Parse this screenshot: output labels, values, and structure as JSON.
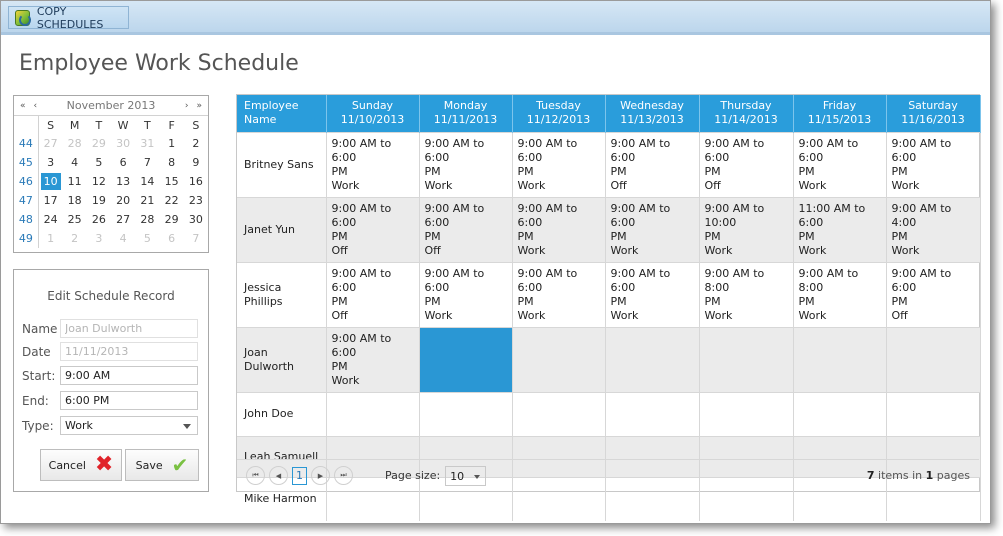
{
  "toolbar": {
    "copy_label": "COPY SCHEDULES",
    "icon": "copy-schedules-icon"
  },
  "page": {
    "title": "Employee Work Schedule"
  },
  "calendar": {
    "month_label": "November 2013",
    "nav": {
      "prev_year": "«",
      "prev": "‹",
      "next": "›",
      "next_year": "»"
    },
    "days": [
      "S",
      "M",
      "T",
      "W",
      "T",
      "F",
      "S"
    ],
    "weeks": [
      {
        "wk": "44",
        "days": [
          "27",
          "28",
          "29",
          "30",
          "31",
          "1",
          "2"
        ]
      },
      {
        "wk": "45",
        "days": [
          "3",
          "4",
          "5",
          "6",
          "7",
          "8",
          "9"
        ]
      },
      {
        "wk": "46",
        "days": [
          "10",
          "11",
          "12",
          "13",
          "14",
          "15",
          "16"
        ]
      },
      {
        "wk": "47",
        "days": [
          "17",
          "18",
          "19",
          "20",
          "21",
          "22",
          "23"
        ]
      },
      {
        "wk": "48",
        "days": [
          "24",
          "25",
          "26",
          "27",
          "28",
          "29",
          "30"
        ]
      },
      {
        "wk": "49",
        "days": [
          "1",
          "2",
          "3",
          "4",
          "5",
          "6",
          "7"
        ]
      }
    ],
    "selected": "10"
  },
  "edit": {
    "title": "Edit Schedule Record",
    "name_label": "Name",
    "name_value": "Joan Dulworth",
    "date_label": "Date",
    "date_value": "11/11/2013",
    "start_label": "Start:",
    "start_value": "9:00 AM",
    "end_label": "End:",
    "end_value": "6:00 PM",
    "type_label": "Type:",
    "type_value": "Work",
    "cancel_label": "Cancel",
    "save_label": "Save"
  },
  "grid": {
    "headers": [
      {
        "l1": "Employee",
        "l2": "Name"
      },
      {
        "l1": "Sunday",
        "l2": "11/10/2013"
      },
      {
        "l1": "Monday",
        "l2": "11/11/2013"
      },
      {
        "l1": "Tuesday",
        "l2": "11/12/2013"
      },
      {
        "l1": "Wednesday",
        "l2": "11/13/2013"
      },
      {
        "l1": "Thursday",
        "l2": "11/14/2013"
      },
      {
        "l1": "Friday",
        "l2": "11/15/2013"
      },
      {
        "l1": "Saturday",
        "l2": "11/16/2013"
      }
    ],
    "rows": [
      {
        "name": "Britney Sans",
        "cells": [
          {
            "t1": "9:00 AM to 6:00",
            "t2": "PM",
            "type": "Work"
          },
          {
            "t1": "9:00 AM to 6:00",
            "t2": "PM",
            "type": "Work"
          },
          {
            "t1": "9:00 AM to 6:00",
            "t2": "PM",
            "type": "Work"
          },
          {
            "t1": "9:00 AM to 6:00",
            "t2": "PM",
            "type": "Off"
          },
          {
            "t1": "9:00 AM to 6:00",
            "t2": "PM",
            "type": "Off"
          },
          {
            "t1": "9:00 AM to 6:00",
            "t2": "PM",
            "type": "Work"
          },
          {
            "t1": "9:00 AM to 6:00",
            "t2": "PM",
            "type": "Work"
          }
        ]
      },
      {
        "name": "Janet Yun",
        "cells": [
          {
            "t1": "9:00 AM to 6:00",
            "t2": "PM",
            "type": "Off"
          },
          {
            "t1": "9:00 AM to 6:00",
            "t2": "PM",
            "type": "Off"
          },
          {
            "t1": "9:00 AM to 6:00",
            "t2": "PM",
            "type": "Work"
          },
          {
            "t1": "9:00 AM to 6:00",
            "t2": "PM",
            "type": "Work"
          },
          {
            "t1": "9:00 AM to 10:00",
            "t2": "PM",
            "type": "Work"
          },
          {
            "t1": "11:00 AM to 6:00",
            "t2": "PM",
            "type": "Work"
          },
          {
            "t1": "9:00 AM to 4:00",
            "t2": "PM",
            "type": "Work"
          }
        ]
      },
      {
        "name": "Jessica Phillips",
        "cells": [
          {
            "t1": "9:00 AM to 6:00",
            "t2": "PM",
            "type": "Off"
          },
          {
            "t1": "9:00 AM to 6:00",
            "t2": "PM",
            "type": "Work"
          },
          {
            "t1": "9:00 AM to 6:00",
            "t2": "PM",
            "type": "Work"
          },
          {
            "t1": "9:00 AM to 6:00",
            "t2": "PM",
            "type": "Work"
          },
          {
            "t1": "9:00 AM to 8:00",
            "t2": "PM",
            "type": "Work"
          },
          {
            "t1": "9:00 AM to 8:00",
            "t2": "PM",
            "type": "Work"
          },
          {
            "t1": "9:00 AM to 6:00",
            "t2": "PM",
            "type": "Off"
          }
        ]
      },
      {
        "name": "Joan Dulworth",
        "cells": [
          {
            "t1": "9:00 AM to 6:00",
            "t2": "PM",
            "type": "Work"
          },
          {
            "t1": "",
            "t2": "",
            "type": "",
            "selected": true
          },
          {
            "t1": "",
            "t2": "",
            "type": ""
          },
          {
            "t1": "",
            "t2": "",
            "type": ""
          },
          {
            "t1": "",
            "t2": "",
            "type": ""
          },
          {
            "t1": "",
            "t2": "",
            "type": ""
          },
          {
            "t1": "",
            "t2": "",
            "type": ""
          }
        ]
      },
      {
        "name": "John Doe",
        "cells": [
          {
            "t1": "",
            "t2": "",
            "type": ""
          },
          {
            "t1": "",
            "t2": "",
            "type": ""
          },
          {
            "t1": "",
            "t2": "",
            "type": ""
          },
          {
            "t1": "",
            "t2": "",
            "type": ""
          },
          {
            "t1": "",
            "t2": "",
            "type": ""
          },
          {
            "t1": "",
            "t2": "",
            "type": ""
          },
          {
            "t1": "",
            "t2": "",
            "type": ""
          }
        ]
      },
      {
        "name": "Leah Samuell",
        "cells": [
          {
            "t1": "",
            "t2": "",
            "type": ""
          },
          {
            "t1": "",
            "t2": "",
            "type": ""
          },
          {
            "t1": "",
            "t2": "",
            "type": ""
          },
          {
            "t1": "",
            "t2": "",
            "type": ""
          },
          {
            "t1": "",
            "t2": "",
            "type": ""
          },
          {
            "t1": "",
            "t2": "",
            "type": ""
          },
          {
            "t1": "",
            "t2": "",
            "type": ""
          }
        ]
      },
      {
        "name": "Mike Harmon",
        "cells": [
          {
            "t1": "",
            "t2": "",
            "type": ""
          },
          {
            "t1": "",
            "t2": "",
            "type": ""
          },
          {
            "t1": "",
            "t2": "",
            "type": ""
          },
          {
            "t1": "",
            "t2": "",
            "type": ""
          },
          {
            "t1": "",
            "t2": "",
            "type": ""
          },
          {
            "t1": "",
            "t2": "",
            "type": ""
          },
          {
            "t1": "",
            "t2": "",
            "type": ""
          }
        ]
      }
    ]
  },
  "pager": {
    "first": "⏮",
    "prev": "◀",
    "page": "1",
    "next": "▶",
    "last": "⏭",
    "page_size_label": "Page size:",
    "page_size_value": "10",
    "info_count": "7",
    "info_mid": " items in ",
    "info_pages": "1",
    "info_end": " pages"
  },
  "colors": {
    "accent": "#2a97d4",
    "header_bg": "#2a9ddb",
    "alt_row": "#ebebeb"
  }
}
